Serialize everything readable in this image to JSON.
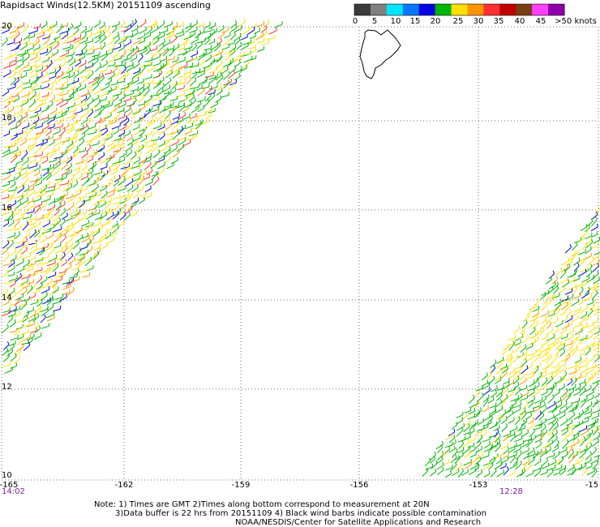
{
  "title": "Rapidsact Winds(12.5KM) 20151109 ascending",
  "legend": {
    "labels": [
      "0",
      "5",
      "10",
      "15",
      "20",
      "25",
      "30",
      "35",
      "40",
      "45",
      ">50 knots"
    ],
    "colors": [
      "#3a3a3a",
      "#7f7f7f",
      "#00e5ff",
      "#0078ff",
      "#0000e0",
      "#00b400",
      "#ffe000",
      "#ff9400",
      "#ff3030",
      "#c00000",
      "#7a3c14",
      "#ff40ff",
      "#9000a8"
    ]
  },
  "axes": {
    "lat_labels": [
      "20",
      "18",
      "16",
      "14",
      "12",
      "10"
    ],
    "lon_labels": [
      "-165",
      "-162",
      "-159",
      "-156",
      "-153",
      "-15"
    ]
  },
  "times": {
    "left": "14:02",
    "right": "12:28"
  },
  "notes": {
    "line1": "Note: 1) Times are GMT 2)Times along bottom correspond to measurement at 20N",
    "line2": "3)Data buffer is 22 hrs from 20151109 4) Black wind barbs indicate possible contamination",
    "line3": "NOAA/NESDIS/Center for Satellite Applications and Research"
  },
  "colors": {
    "time_label": "#7a1fa2",
    "grid": "#444444",
    "coast": "#000000"
  }
}
